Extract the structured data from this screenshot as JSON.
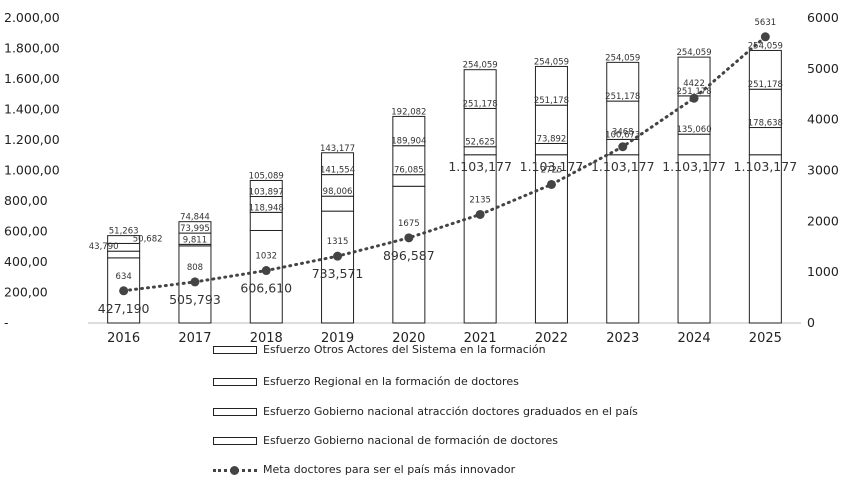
{
  "chart_data": {
    "type": "bar",
    "categories": [
      "2016",
      "2017",
      "2018",
      "2019",
      "2020",
      "2021",
      "2022",
      "2023",
      "2024",
      "2025"
    ],
    "left_axis": {
      "ylim": [
        0,
        2000
      ],
      "ticks": [
        {
          "value": 0,
          "label": "-"
        },
        {
          "value": 200,
          "label": "200,00"
        },
        {
          "value": 400,
          "label": "400,00"
        },
        {
          "value": 600,
          "label": "600,00"
        },
        {
          "value": 800,
          "label": "800,00"
        },
        {
          "value": 1000,
          "label": "1.000,00"
        },
        {
          "value": 1200,
          "label": "1.200,00"
        },
        {
          "value": 1400,
          "label": "1.400,00"
        },
        {
          "value": 1600,
          "label": "1.600,00"
        },
        {
          "value": 1800,
          "label": "1.800,00"
        },
        {
          "value": 2000,
          "label": "2.000,00"
        }
      ]
    },
    "right_axis": {
      "ylim": [
        0,
        6000
      ],
      "ticks": [
        {
          "value": 0,
          "label": "0"
        },
        {
          "value": 1000,
          "label": "1000"
        },
        {
          "value": 2000,
          "label": "2000"
        },
        {
          "value": 3000,
          "label": "3000"
        },
        {
          "value": 4000,
          "label": "4000"
        },
        {
          "value": 5000,
          "label": "5000"
        },
        {
          "value": 6000,
          "label": "6000"
        }
      ]
    },
    "series": [
      {
        "name": "Esfuerzo Gobierno nacional de formación de doctores",
        "values": [
          427.19,
          505.793,
          606.61,
          733.571,
          896.587,
          1103.177,
          1103.177,
          1103.177,
          1103.177,
          1103.177
        ],
        "labels": [
          "427,190",
          "505,793",
          "606,610",
          "733,571",
          "896,587",
          "1.103,177",
          "1.103,177",
          "1.103,177",
          "1.103,177",
          "1.103,177"
        ]
      },
      {
        "name": "Esfuerzo Gobierno nacional atracción doctores graduados en el país",
        "values": [
          43.79,
          9.811,
          118.948,
          98.006,
          76.085,
          52.625,
          73.892,
          100.673,
          135.06,
          178.638
        ],
        "labels": [
          "43,790",
          "9,811",
          "118,948",
          "98,006",
          "76,085",
          "52,625",
          "73,892",
          "100,673",
          "135,060",
          "178,638"
        ]
      },
      {
        "name": "Esfuerzo Regional en la formación de doctores",
        "values": [
          50.682,
          73.995,
          103.897,
          141.554,
          189.904,
          251.178,
          251.178,
          251.178,
          251.178,
          251.178
        ],
        "labels": [
          "50,682",
          "73,995",
          "103,897",
          "141,554",
          "189,904",
          "251,178",
          "251,178",
          "251,178",
          "251,178",
          "251,178"
        ]
      },
      {
        "name": "Esfuerzo Otros Actores del Sistema en la formación",
        "values": [
          51.263,
          74.844,
          105.089,
          143.177,
          192.082,
          254.059,
          254.059,
          254.059,
          254.059,
          254.059
        ],
        "labels": [
          "51,263",
          "74,844",
          "105,089",
          "143,177",
          "192,082",
          "254,059",
          "254,059",
          "254,059",
          "254,059",
          "254,059"
        ]
      }
    ],
    "line_series": {
      "name": "Meta doctores para ser el país más innovador",
      "axis": "right",
      "values": [
        634,
        808,
        1032,
        1315,
        1675,
        2135,
        2725,
        3468,
        4422,
        5631
      ],
      "labels": [
        "634",
        "808",
        "1032",
        "1315",
        "1675",
        "2135",
        "2725",
        "3468",
        "4422",
        "5631"
      ]
    },
    "legend": {
      "placement": "bottom",
      "items": [
        {
          "label": "Esfuerzo Otros Actores del Sistema en la formación",
          "kind": "bar"
        },
        {
          "label": "Esfuerzo Regional en la formación de doctores",
          "kind": "bar"
        },
        {
          "label": "Esfuerzo Gobierno nacional atracción doctores graduados en el país",
          "kind": "bar"
        },
        {
          "label": "Esfuerzo Gobierno nacional de formación de doctores",
          "kind": "bar"
        },
        {
          "label": "Meta doctores para ser el país más innovador",
          "kind": "line"
        }
      ]
    },
    "colors": {
      "bar_fill": "#ffffff",
      "bar_stroke": "#222222",
      "line": "#444444"
    }
  }
}
